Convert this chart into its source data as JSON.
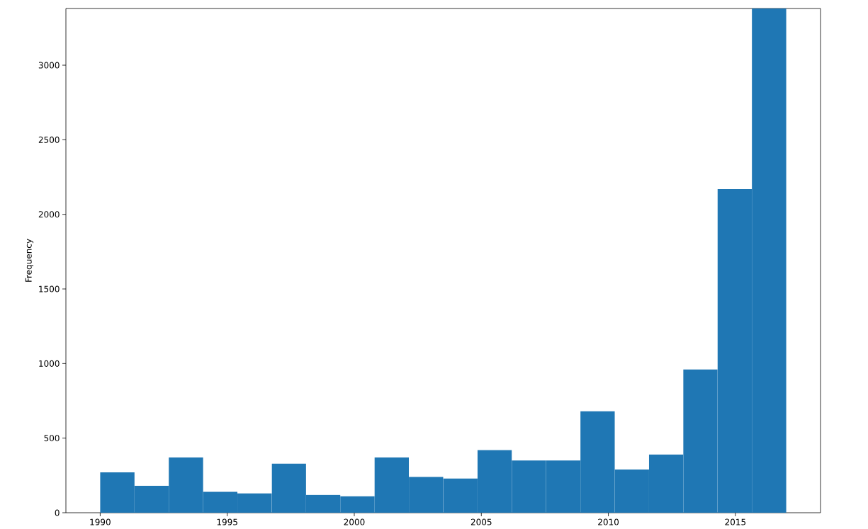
{
  "chart_data": {
    "type": "histogram",
    "ylabel": "Frequency",
    "bins": [
      1990,
      1991.35,
      1992.7,
      1994.05,
      1995.4,
      1996.75,
      1998.1,
      1999.45,
      2000.8,
      2002.15,
      2003.5,
      2004.85,
      2006.2,
      2007.55,
      2008.9,
      2010.25,
      2011.6,
      2012.95,
      2014.3,
      2015.65,
      2017
    ],
    "values": [
      270,
      180,
      370,
      140,
      130,
      330,
      120,
      110,
      370,
      240,
      230,
      420,
      350,
      350,
      680,
      290,
      390,
      960,
      2170,
      3380
    ],
    "color": "#1f77b4",
    "xlim": [
      1988.65,
      2018.35
    ],
    "ylim": [
      0,
      3380
    ],
    "xticks": [
      1990,
      1995,
      2000,
      2005,
      2010,
      2015
    ],
    "yticks": [
      0,
      500,
      1000,
      1500,
      2000,
      2500,
      3000
    ]
  }
}
